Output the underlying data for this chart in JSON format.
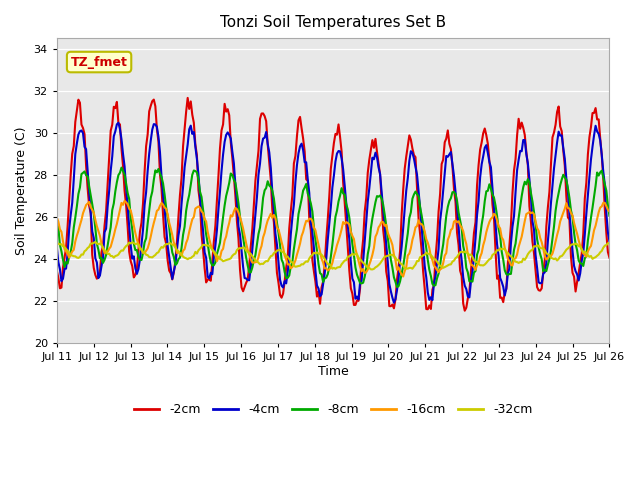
{
  "title": "Tonzi Soil Temperatures Set B",
  "xlabel": "Time",
  "ylabel": "Soil Temperature (C)",
  "ylim": [
    20,
    34.5
  ],
  "yticks": [
    20,
    22,
    24,
    26,
    28,
    30,
    32,
    34
  ],
  "xlim": [
    0,
    15
  ],
  "x_tick_labels": [
    "Jul 11",
    "Jul 12",
    "Jul 13",
    "Jul 14",
    "Jul 15",
    "Jul 16",
    "Jul 17",
    "Jul 18",
    "Jul 19",
    "Jul 20",
    "Jul 21",
    "Jul 22",
    "Jul 23",
    "Jul 24",
    "Jul 25",
    "Jul 26"
  ],
  "annotation_text": "TZ_fmet",
  "annotation_color": "#cc0000",
  "annotation_bg": "#ffffcc",
  "annotation_border": "#bbbb00",
  "series_colors": [
    "#dd0000",
    "#0000cc",
    "#00aa00",
    "#ff9900",
    "#cccc00"
  ],
  "series_labels": [
    "-2cm",
    "-4cm",
    "-8cm",
    "-16cm",
    "-32cm"
  ],
  "series_linewidth": 1.5,
  "bg_color": "#e8e8e8",
  "fig_bg": "#ffffff",
  "grid_color": "#ffffff",
  "points_per_day": 24,
  "num_days": 15
}
